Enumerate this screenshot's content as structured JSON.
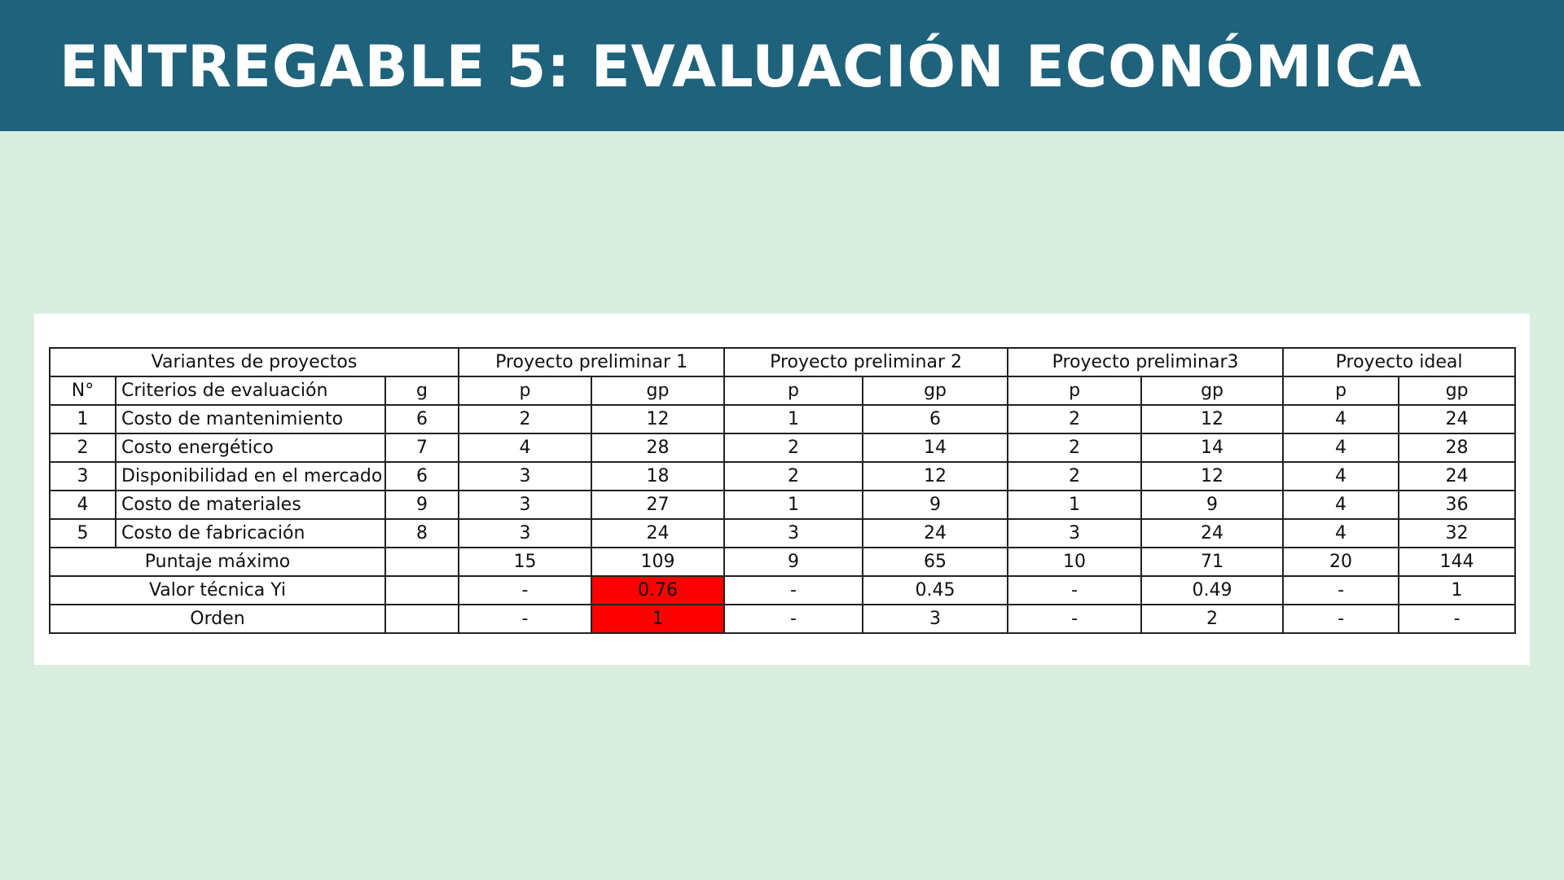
{
  "header": {
    "title": "ENTREGABLE 5: EVALUACIÓN ECONÓMICA",
    "background": "#1f627b"
  },
  "page": {
    "background": "#daeee0"
  },
  "table": {
    "group_headers": {
      "variantes": "Variantes de proyectos",
      "p1": "Proyecto preliminar 1",
      "p2": "Proyecto preliminar 2",
      "p3": "Proyecto preliminar3",
      "ideal": "Proyecto ideal"
    },
    "sub_headers": {
      "n": "N°",
      "criterios": "Criterios de evaluación",
      "g": "g",
      "p1_p": "p",
      "p1_gp": "gp",
      "p2_p": "p",
      "p2_gp": "gp",
      "p3_p": "p",
      "p3_gp": "gp",
      "ideal_p": "p",
      "ideal_gp": "gp"
    },
    "rows": [
      {
        "n": "1",
        "criterio": "Costo de mantenimiento",
        "g": "6",
        "p1_p": "2",
        "p1_gp": "12",
        "p2_p": "1",
        "p2_gp": "6",
        "p3_p": "2",
        "p3_gp": "12",
        "ideal_p": "4",
        "ideal_gp": "24"
      },
      {
        "n": "2",
        "criterio": "Costo energético",
        "g": "7",
        "p1_p": "4",
        "p1_gp": "28",
        "p2_p": "2",
        "p2_gp": "14",
        "p3_p": "2",
        "p3_gp": "14",
        "ideal_p": "4",
        "ideal_gp": "28"
      },
      {
        "n": "3",
        "criterio": "Disponibilidad en el mercado",
        "g": "6",
        "p1_p": "3",
        "p1_gp": "18",
        "p2_p": "2",
        "p2_gp": "12",
        "p3_p": "2",
        "p3_gp": "12",
        "ideal_p": "4",
        "ideal_gp": "24"
      },
      {
        "n": "4",
        "criterio": "Costo de materiales",
        "g": "9",
        "p1_p": "3",
        "p1_gp": "27",
        "p2_p": "1",
        "p2_gp": "9",
        "p3_p": "1",
        "p3_gp": "9",
        "ideal_p": "4",
        "ideal_gp": "36"
      },
      {
        "n": "5",
        "criterio": "Costo de fabricación",
        "g": "8",
        "p1_p": "3",
        "p1_gp": "24",
        "p2_p": "3",
        "p2_gp": "24",
        "p3_p": "3",
        "p3_gp": "24",
        "ideal_p": "4",
        "ideal_gp": "32"
      }
    ],
    "summary": [
      {
        "label": "Puntaje máximo",
        "g": "",
        "p1_p": "15",
        "p1_gp": "109",
        "p2_p": "9",
        "p2_gp": "65",
        "p3_p": "10",
        "p3_gp": "71",
        "ideal_p": "20",
        "ideal_gp": "144"
      },
      {
        "label": "Valor técnica Yi",
        "g": "",
        "p1_p": "-",
        "p1_gp": "0.76",
        "p2_p": "-",
        "p2_gp": "0.45",
        "p3_p": "-",
        "p3_gp": "0.49",
        "ideal_p": "-",
        "ideal_gp": "1"
      },
      {
        "label": "Orden",
        "g": "",
        "p1_p": "-",
        "p1_gp": "1",
        "p2_p": "-",
        "p2_gp": "3",
        "p3_p": "-",
        "p3_gp": "2",
        "ideal_p": "-",
        "ideal_gp": "-"
      }
    ],
    "highlight_color": "#ff0000"
  }
}
